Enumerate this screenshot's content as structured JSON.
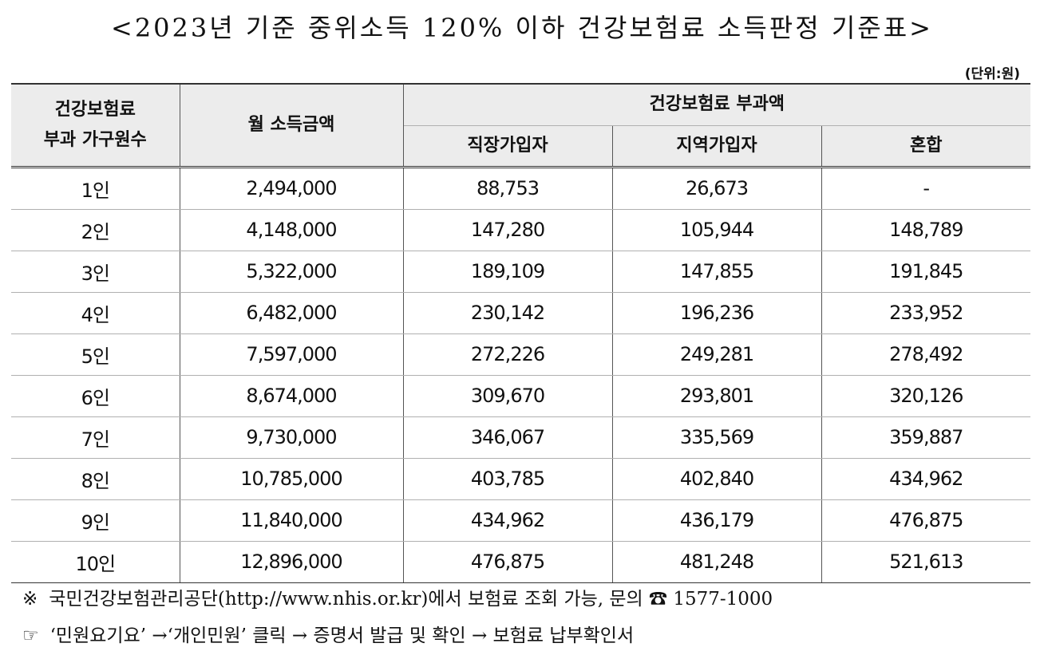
{
  "title": "<2023년 기준 중위소득 120% 이하 건강보험료 소득판정 기준표>",
  "unit": "(단위:원)",
  "table": {
    "headers": {
      "household": [
        "건강보험료",
        "부과 가구원수"
      ],
      "income": "월 소득금액",
      "premium_group": "건강보험료 부과액",
      "employee": "직장가입자",
      "regional": "지역가입자",
      "mixed": "혼합"
    },
    "rows": [
      {
        "household": "1인",
        "income": "2,494,000",
        "employee": "88,753",
        "regional": "26,673",
        "mixed": "-"
      },
      {
        "household": "2인",
        "income": "4,148,000",
        "employee": "147,280",
        "regional": "105,944",
        "mixed": "148,789"
      },
      {
        "household": "3인",
        "income": "5,322,000",
        "employee": "189,109",
        "regional": "147,855",
        "mixed": "191,845"
      },
      {
        "household": "4인",
        "income": "6,482,000",
        "employee": "230,142",
        "regional": "196,236",
        "mixed": "233,952"
      },
      {
        "household": "5인",
        "income": "7,597,000",
        "employee": "272,226",
        "regional": "249,281",
        "mixed": "278,492"
      },
      {
        "household": "6인",
        "income": "8,674,000",
        "employee": "309,670",
        "regional": "293,801",
        "mixed": "320,126"
      },
      {
        "household": "7인",
        "income": "9,730,000",
        "employee": "346,067",
        "regional": "335,569",
        "mixed": "359,887"
      },
      {
        "household": "8인",
        "income": "10,785,000",
        "employee": "403,785",
        "regional": "402,840",
        "mixed": "434,962"
      },
      {
        "household": "9인",
        "income": "11,840,000",
        "employee": "434,962",
        "regional": "436,179",
        "mixed": "476,875"
      },
      {
        "household": "10인",
        "income": "12,896,000",
        "employee": "476,875",
        "regional": "481,248",
        "mixed": "521,613"
      }
    ]
  },
  "notes": [
    {
      "mark": "※",
      "text": "국민건강보험관리공단(http://www.nhis.or.kr)에서 보험료 조회 가능, 문의 ☎ 1577-1000"
    },
    {
      "mark": "☞",
      "text": "‘민원요기요’ →‘개인민원’ 클릭 → 증명서 발급 및 확인 → 보험료 납부확인서"
    }
  ]
}
